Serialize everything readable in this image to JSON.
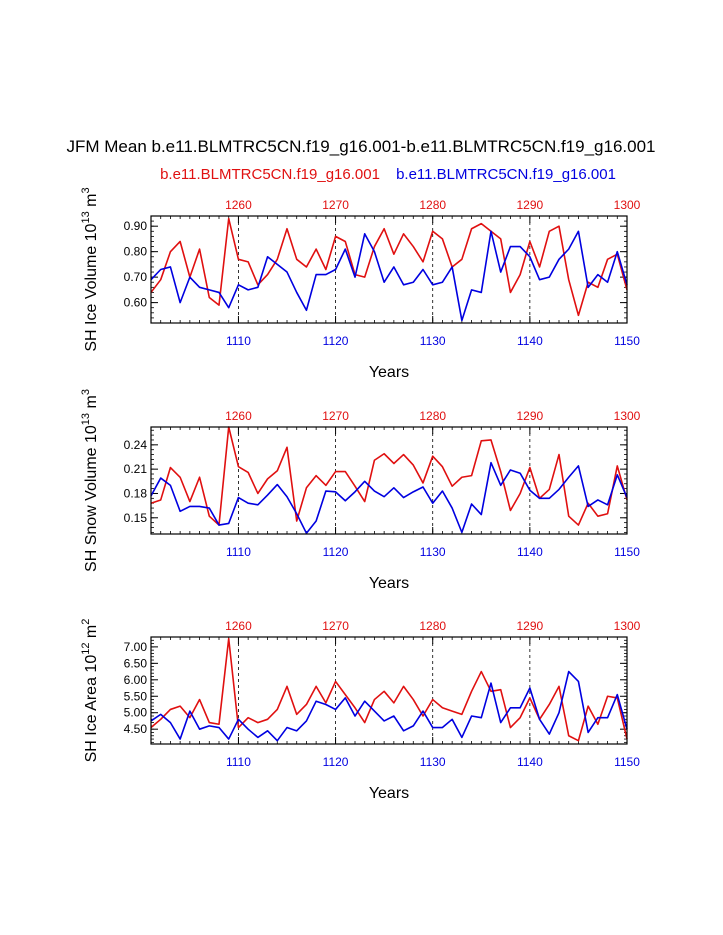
{
  "title": "JFM Mean b.e11.BLMTRC5CN.f19_g16.001-b.e11.BLMTRC5CN.f19_g16.001",
  "legend_red": "b.e11.BLMTRC5CN.f19_g16.001",
  "legend_blue": "b.e11.BLMTRC5CN.f19_g16.001",
  "colors": {
    "red": "#e01010",
    "blue": "#0000e0",
    "axis": "#000000"
  },
  "chart_data": [
    {
      "type": "line",
      "ylabel_main": "SH Ice Volume 10",
      "ylabel_exp": "13",
      "ylabel_unit": " m",
      "ylabel_unit_exp": "3",
      "xlabel": "Years",
      "ylim": [
        0.52,
        0.94
      ],
      "yticks": [
        0.6,
        0.7,
        0.8,
        0.9
      ],
      "ytick_labels": [
        "0.60",
        "0.70",
        "0.80",
        "0.90"
      ],
      "bottom_axis": {
        "range": [
          1101,
          1150
        ],
        "ticks": [
          1110,
          1120,
          1130,
          1140,
          1150
        ],
        "labels": [
          "1110",
          "1120",
          "1130",
          "1140",
          "1150"
        ]
      },
      "top_axis": {
        "range": [
          1251,
          1300
        ],
        "ticks": [
          1260,
          1270,
          1280,
          1290,
          1300
        ],
        "labels": [
          "1260",
          "1270",
          "1280",
          "1290",
          "1300"
        ]
      },
      "series": [
        {
          "name": "b.e11.BLMTRC5CN.f19_g16.001",
          "color": "red",
          "axis": "top",
          "values": [
            0.64,
            0.69,
            0.8,
            0.84,
            0.7,
            0.81,
            0.62,
            0.59,
            0.93,
            0.77,
            0.76,
            0.67,
            0.71,
            0.77,
            0.89,
            0.77,
            0.74,
            0.81,
            0.73,
            0.86,
            0.84,
            0.71,
            0.7,
            0.82,
            0.89,
            0.79,
            0.87,
            0.82,
            0.76,
            0.88,
            0.85,
            0.74,
            0.77,
            0.89,
            0.91,
            0.88,
            0.85,
            0.64,
            0.71,
            0.84,
            0.74,
            0.88,
            0.9,
            0.69,
            0.55,
            0.68,
            0.66,
            0.77,
            0.79,
            0.65
          ]
        },
        {
          "name": "b.e11.BLMTRC5CN.f19_g16.001",
          "color": "blue",
          "axis": "bottom",
          "values": [
            0.69,
            0.73,
            0.74,
            0.6,
            0.7,
            0.66,
            0.65,
            0.64,
            0.58,
            0.67,
            0.65,
            0.66,
            0.78,
            0.75,
            0.72,
            0.64,
            0.57,
            0.71,
            0.71,
            0.73,
            0.81,
            0.7,
            0.87,
            0.8,
            0.68,
            0.74,
            0.67,
            0.68,
            0.73,
            0.67,
            0.68,
            0.74,
            0.53,
            0.65,
            0.64,
            0.88,
            0.72,
            0.82,
            0.82,
            0.78,
            0.69,
            0.7,
            0.77,
            0.81,
            0.88,
            0.66,
            0.71,
            0.68,
            0.8,
            0.67
          ]
        }
      ]
    },
    {
      "type": "line",
      "ylabel_main": "SH Snow Volume 10",
      "ylabel_exp": "13",
      "ylabel_unit": " m",
      "ylabel_unit_exp": "3",
      "xlabel": "Years",
      "ylim": [
        0.13,
        0.262
      ],
      "yticks": [
        0.15,
        0.18,
        0.21,
        0.24
      ],
      "ytick_labels": [
        "0.15",
        "0.18",
        "0.21",
        "0.24"
      ],
      "bottom_axis": {
        "range": [
          1101,
          1150
        ],
        "ticks": [
          1110,
          1120,
          1130,
          1140,
          1150
        ],
        "labels": [
          "1110",
          "1120",
          "1130",
          "1140",
          "1150"
        ]
      },
      "top_axis": {
        "range": [
          1251,
          1300
        ],
        "ticks": [
          1260,
          1270,
          1280,
          1290,
          1300
        ],
        "labels": [
          "1260",
          "1270",
          "1280",
          "1290",
          "1300"
        ]
      },
      "series": [
        {
          "name": "b.e11.BLMTRC5CN.f19_g16.001",
          "color": "red",
          "axis": "top",
          "values": [
            0.168,
            0.172,
            0.212,
            0.2,
            0.17,
            0.2,
            0.152,
            0.141,
            0.262,
            0.213,
            0.206,
            0.18,
            0.198,
            0.208,
            0.237,
            0.146,
            0.187,
            0.202,
            0.19,
            0.207,
            0.207,
            0.189,
            0.17,
            0.221,
            0.229,
            0.217,
            0.228,
            0.215,
            0.193,
            0.226,
            0.213,
            0.189,
            0.2,
            0.202,
            0.245,
            0.246,
            0.207,
            0.159,
            0.18,
            0.212,
            0.174,
            0.185,
            0.228,
            0.152,
            0.141,
            0.168,
            0.152,
            0.155,
            0.214,
            0.172
          ]
        },
        {
          "name": "b.e11.BLMTRC5CN.f19_g16.001",
          "color": "blue",
          "axis": "bottom",
          "values": [
            0.177,
            0.199,
            0.19,
            0.158,
            0.164,
            0.164,
            0.162,
            0.141,
            0.143,
            0.175,
            0.168,
            0.166,
            0.178,
            0.191,
            0.176,
            0.155,
            0.131,
            0.146,
            0.183,
            0.182,
            0.171,
            0.182,
            0.195,
            0.183,
            0.176,
            0.187,
            0.175,
            0.182,
            0.188,
            0.168,
            0.183,
            0.162,
            0.132,
            0.167,
            0.154,
            0.218,
            0.19,
            0.209,
            0.205,
            0.184,
            0.174,
            0.174,
            0.185,
            0.2,
            0.214,
            0.164,
            0.172,
            0.166,
            0.203,
            0.175
          ]
        }
      ]
    },
    {
      "type": "line",
      "ylabel_main": "SH Ice Area 10",
      "ylabel_exp": "12",
      "ylabel_unit": " m",
      "ylabel_unit_exp": "2",
      "xlabel": "Years",
      "ylim": [
        4.05,
        7.3
      ],
      "yticks": [
        4.5,
        5.0,
        5.5,
        6.0,
        6.5,
        7.0
      ],
      "ytick_labels": [
        "4.50",
        "5.00",
        "5.50",
        "6.00",
        "6.50",
        "7.00"
      ],
      "bottom_axis": {
        "range": [
          1101,
          1150
        ],
        "ticks": [
          1110,
          1120,
          1130,
          1140,
          1150
        ],
        "labels": [
          "1110",
          "1120",
          "1130",
          "1140",
          "1150"
        ]
      },
      "top_axis": {
        "range": [
          1251,
          1300
        ],
        "ticks": [
          1260,
          1270,
          1280,
          1290,
          1300
        ],
        "labels": [
          "1260",
          "1270",
          "1280",
          "1290",
          "1300"
        ]
      },
      "series": [
        {
          "name": "b.e11.BLMTRC5CN.f19_g16.001",
          "color": "red",
          "axis": "top",
          "values": [
            4.55,
            4.8,
            5.1,
            5.2,
            4.85,
            5.4,
            4.7,
            4.65,
            7.25,
            4.55,
            4.85,
            4.7,
            4.8,
            5.1,
            5.8,
            4.95,
            5.25,
            5.8,
            5.3,
            5.95,
            5.55,
            5.15,
            4.7,
            5.4,
            5.65,
            5.3,
            5.8,
            5.4,
            4.9,
            5.4,
            5.15,
            5.05,
            4.95,
            5.65,
            6.25,
            5.65,
            5.7,
            4.55,
            4.85,
            5.45,
            4.8,
            5.25,
            5.8,
            4.3,
            4.15,
            5.2,
            4.65,
            5.5,
            5.45,
            4.2
          ]
        },
        {
          "name": "b.e11.BLMTRC5CN.f19_g16.001",
          "color": "blue",
          "axis": "bottom",
          "values": [
            4.75,
            4.95,
            4.7,
            4.2,
            5.05,
            4.5,
            4.6,
            4.55,
            4.2,
            4.8,
            4.5,
            4.25,
            4.45,
            4.15,
            4.55,
            4.45,
            4.75,
            5.35,
            5.25,
            5.1,
            5.45,
            4.9,
            5.35,
            5.05,
            4.75,
            4.9,
            4.45,
            4.6,
            5.05,
            4.55,
            4.55,
            4.8,
            4.25,
            4.9,
            4.85,
            5.9,
            4.7,
            5.15,
            5.15,
            5.75,
            4.8,
            4.35,
            5.0,
            6.25,
            5.95,
            4.4,
            4.85,
            4.85,
            5.55,
            4.5
          ]
        }
      ]
    }
  ]
}
